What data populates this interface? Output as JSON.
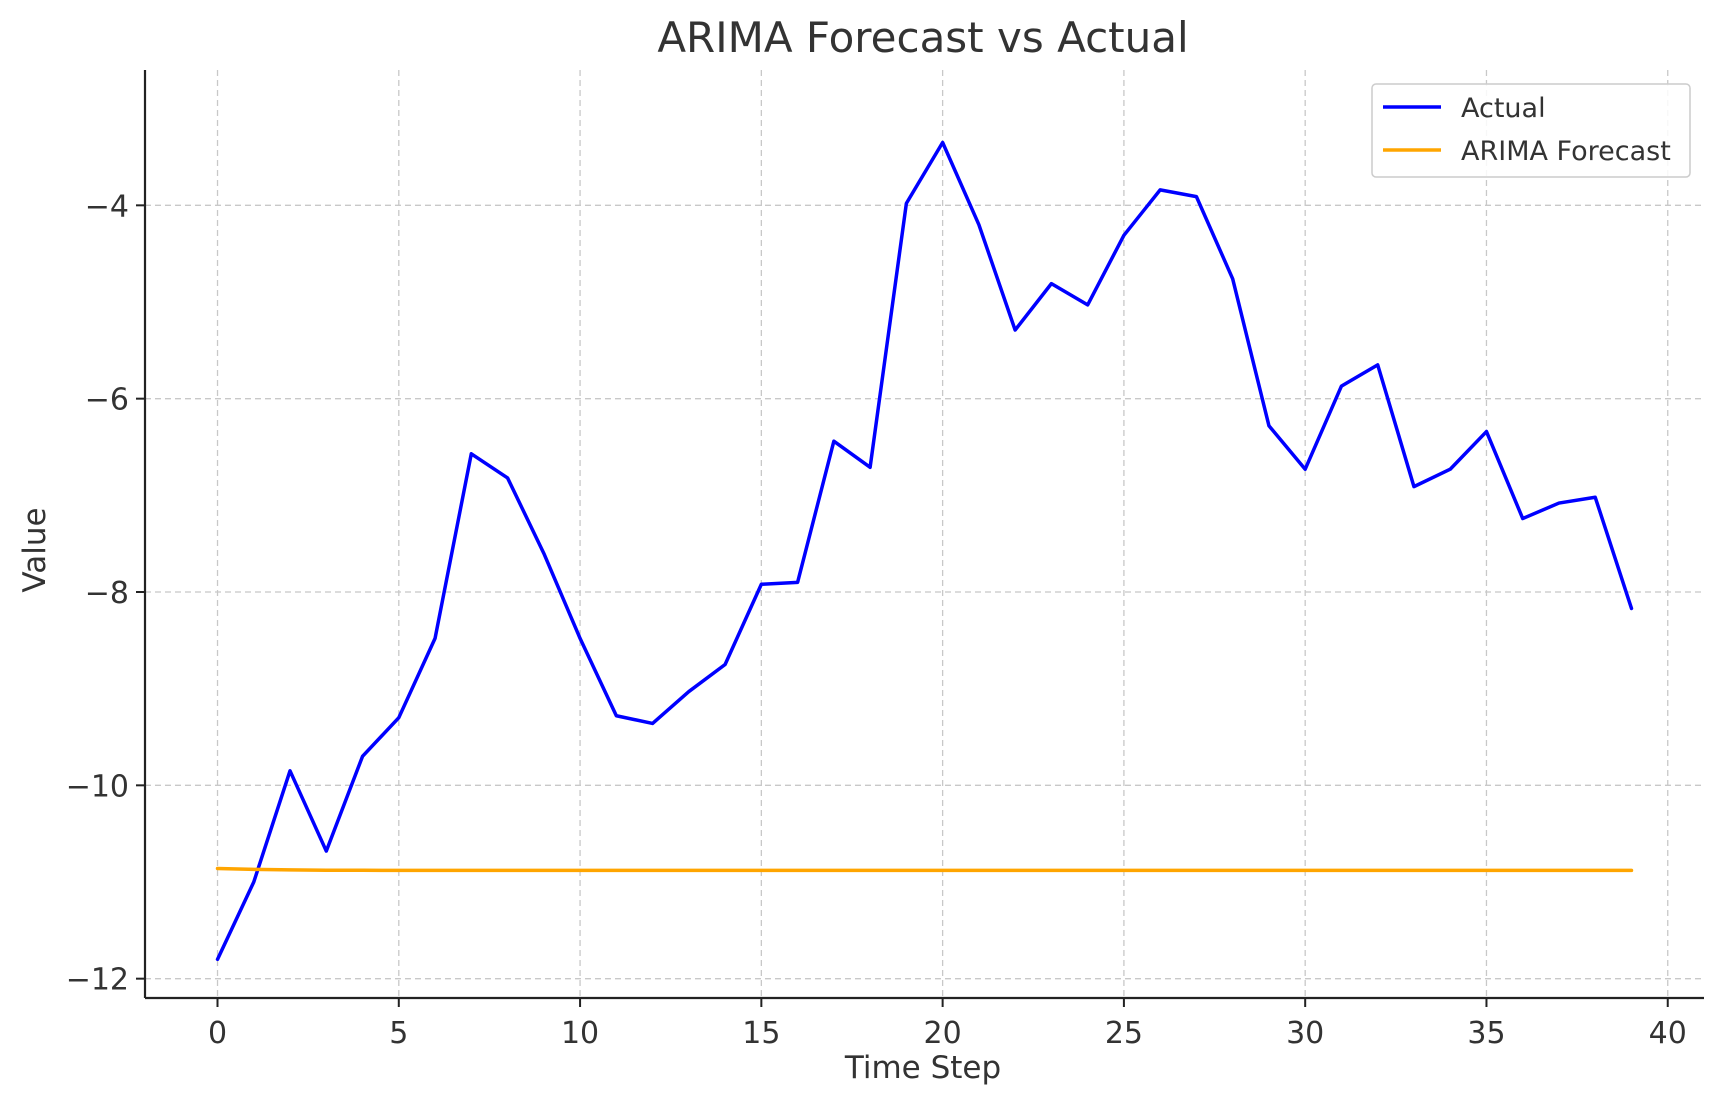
{
  "chart_data": {
    "type": "line",
    "title": "ARIMA Forecast vs Actual",
    "xlabel": "Time Step",
    "ylabel": "Value",
    "xlim": [
      -2,
      41
    ],
    "ylim": [
      -12.2,
      -2.6
    ],
    "x_ticks": [
      0,
      5,
      10,
      15,
      20,
      25,
      30,
      35,
      40
    ],
    "y_ticks": [
      -12,
      -10,
      -8,
      -6,
      -4
    ],
    "x_tick_labels": [
      "0",
      "5",
      "10",
      "15",
      "20",
      "25",
      "30",
      "35",
      "40"
    ],
    "y_tick_labels": [
      "−12",
      "−10",
      "−8",
      "−6",
      "−4"
    ],
    "grid": true,
    "legend_position": "top-right",
    "x": [
      0,
      1,
      2,
      3,
      4,
      5,
      6,
      7,
      8,
      9,
      10,
      11,
      12,
      13,
      14,
      15,
      16,
      17,
      18,
      19,
      20,
      21,
      22,
      23,
      24,
      25,
      26,
      27,
      28,
      29,
      30,
      31,
      32,
      33,
      34,
      35,
      36,
      37,
      38,
      39
    ],
    "series": [
      {
        "name": "Actual",
        "color": "#0000ff",
        "values": [
          -11.8,
          -11.0,
          -9.85,
          -10.68,
          -9.7,
          -9.3,
          -8.48,
          -6.57,
          -6.82,
          -7.6,
          -8.48,
          -9.28,
          -9.36,
          -9.03,
          -8.75,
          -7.92,
          -7.9,
          -6.44,
          -6.71,
          -3.98,
          -3.35,
          -4.2,
          -5.29,
          -4.81,
          -5.03,
          -4.31,
          -3.84,
          -3.91,
          -4.76,
          -6.28,
          -6.73,
          -5.87,
          -5.65,
          -6.91,
          -6.73,
          -6.34,
          -7.24,
          -7.08,
          -7.02,
          -8.17
        ]
      },
      {
        "name": "ARIMA Forecast",
        "color": "#ffa500",
        "values": [
          -10.86,
          -10.87,
          -10.875,
          -10.878,
          -10.879,
          -10.88,
          -10.88,
          -10.88,
          -10.88,
          -10.88,
          -10.88,
          -10.88,
          -10.88,
          -10.88,
          -10.88,
          -10.88,
          -10.88,
          -10.88,
          -10.88,
          -10.88,
          -10.88,
          -10.88,
          -10.88,
          -10.88,
          -10.88,
          -10.88,
          -10.88,
          -10.88,
          -10.88,
          -10.88,
          -10.88,
          -10.88,
          -10.88,
          -10.88,
          -10.88,
          -10.88,
          -10.88,
          -10.88,
          -10.88,
          -10.88
        ]
      }
    ]
  }
}
